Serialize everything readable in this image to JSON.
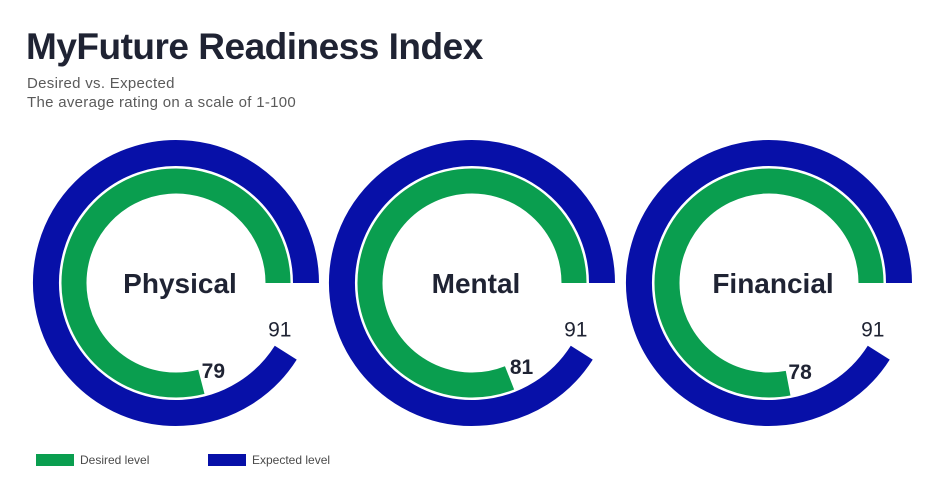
{
  "title": "MyFuture Readiness Index",
  "subtitle": "Desired vs. Expected",
  "subtitle2": "The average rating on a scale of 1-100",
  "colors": {
    "desired": "#0a9e4f",
    "expected": "#0710a8",
    "text": "#1f2333"
  },
  "legend": {
    "desired": "Desired level",
    "expected": "Expected level"
  },
  "chart_data": [
    {
      "type": "pie",
      "label": "Physical",
      "series": [
        {
          "name": "Desired level",
          "values": [
            79
          ]
        },
        {
          "name": "Expected level",
          "values": [
            91
          ]
        }
      ],
      "scale": [
        1,
        100
      ]
    },
    {
      "type": "pie",
      "label": "Mental",
      "series": [
        {
          "name": "Desired level",
          "values": [
            81
          ]
        },
        {
          "name": "Expected level",
          "values": [
            91
          ]
        }
      ],
      "scale": [
        1,
        100
      ]
    },
    {
      "type": "pie",
      "label": "Financial",
      "series": [
        {
          "name": "Desired level",
          "values": [
            78
          ]
        },
        {
          "name": "Expected level",
          "values": [
            91
          ]
        }
      ],
      "scale": [
        1,
        100
      ]
    }
  ]
}
